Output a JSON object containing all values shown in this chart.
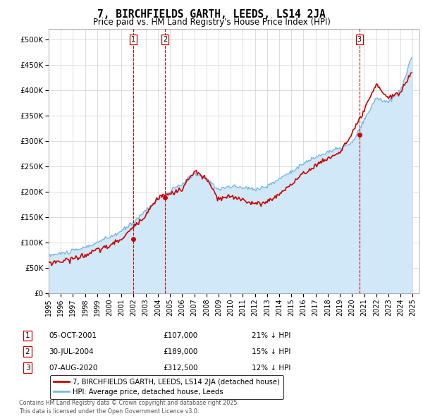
{
  "title": "7, BIRCHFIELDS GARTH, LEEDS, LS14 2JA",
  "subtitle": "Price paid vs. HM Land Registry's House Price Index (HPI)",
  "ylim": [
    0,
    520000
  ],
  "yticks": [
    0,
    50000,
    100000,
    150000,
    200000,
    250000,
    300000,
    350000,
    400000,
    450000,
    500000
  ],
  "ytick_labels": [
    "£0",
    "£50K",
    "£100K",
    "£150K",
    "£200K",
    "£250K",
    "£300K",
    "£350K",
    "£400K",
    "£450K",
    "£500K"
  ],
  "xlim_start": 1995.0,
  "xlim_end": 2025.5,
  "hpi_color": "#7ab8e8",
  "hpi_fill_color": "#d0e8f8",
  "price_color": "#cc0000",
  "vline_color": "#cc0000",
  "legend_label_price": "7, BIRCHFIELDS GARTH, LEEDS, LS14 2JA (detached house)",
  "legend_label_hpi": "HPI: Average price, detached house, Leeds",
  "transactions": [
    {
      "num": 1,
      "date": "05-OCT-2001",
      "price": 107000,
      "hpi_pct": "21% ↓ HPI",
      "x": 2002.0
    },
    {
      "num": 2,
      "date": "30-JUL-2004",
      "price": 189000,
      "hpi_pct": "15% ↓ HPI",
      "x": 2004.6
    },
    {
      "num": 3,
      "date": "07-AUG-2020",
      "price": 312500,
      "hpi_pct": "12% ↓ HPI",
      "x": 2020.6
    }
  ],
  "footer": "Contains HM Land Registry data © Crown copyright and database right 2025.\nThis data is licensed under the Open Government Licence v3.0."
}
